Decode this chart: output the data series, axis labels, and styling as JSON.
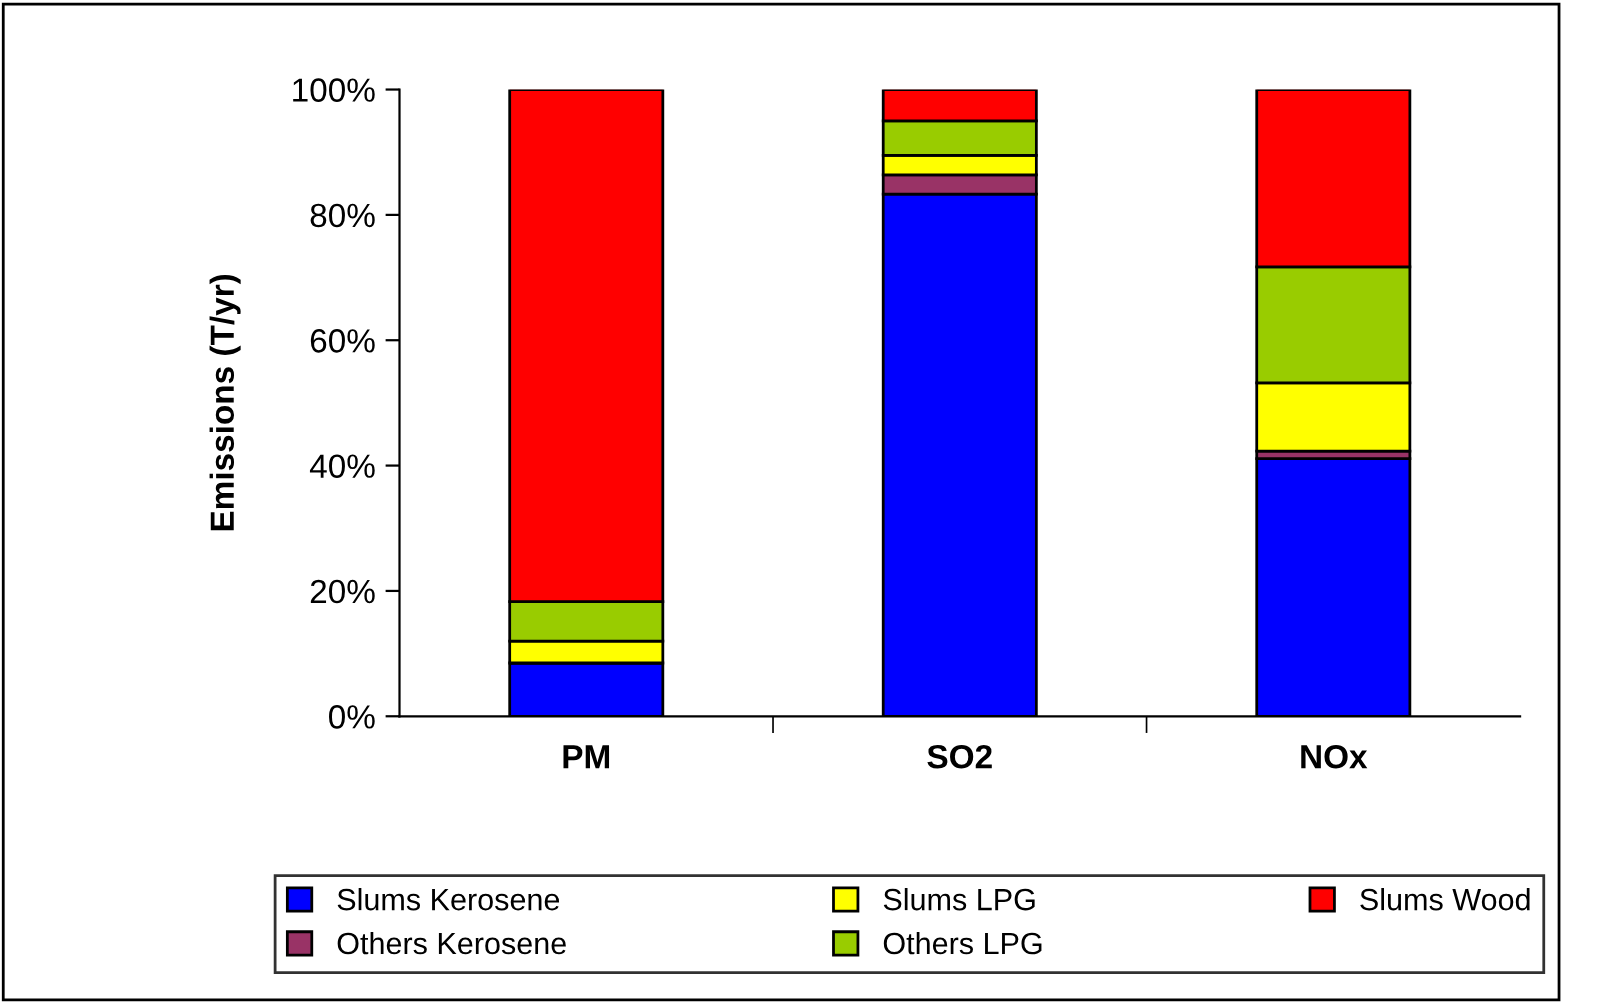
{
  "chart_data": {
    "type": "bar",
    "stacked": true,
    "ylabel": "Emissions (T/yr)",
    "categories": [
      "PM",
      "SO2",
      "NOx"
    ],
    "series": [
      {
        "name": "Slums Kerosene",
        "color": "#0000ff",
        "values": [
          8.5,
          83.3,
          41.1
        ]
      },
      {
        "name": "Others Kerosene",
        "color": "#993366",
        "values": [
          0,
          3.1,
          1.2
        ]
      },
      {
        "name": "Slums LPG",
        "color": "#ffff00",
        "values": [
          3.5,
          3.1,
          10.9
        ]
      },
      {
        "name": "Others LPG",
        "color": "#99cc00",
        "values": [
          6.3,
          5.5,
          18.5
        ]
      },
      {
        "name": "Slums Wood",
        "color": "#ff0000",
        "values": [
          81.7,
          5.0,
          28.3
        ]
      }
    ],
    "ylim": [
      0,
      100
    ],
    "yticks": [
      {
        "value": 0,
        "label": "0%"
      },
      {
        "value": 20,
        "label": "20%"
      },
      {
        "value": 40,
        "label": "40%"
      },
      {
        "value": 60,
        "label": "60%"
      },
      {
        "value": 80,
        "label": "80%"
      },
      {
        "value": 100,
        "label": "100%"
      }
    ],
    "grid": false,
    "legend": "bottom"
  }
}
